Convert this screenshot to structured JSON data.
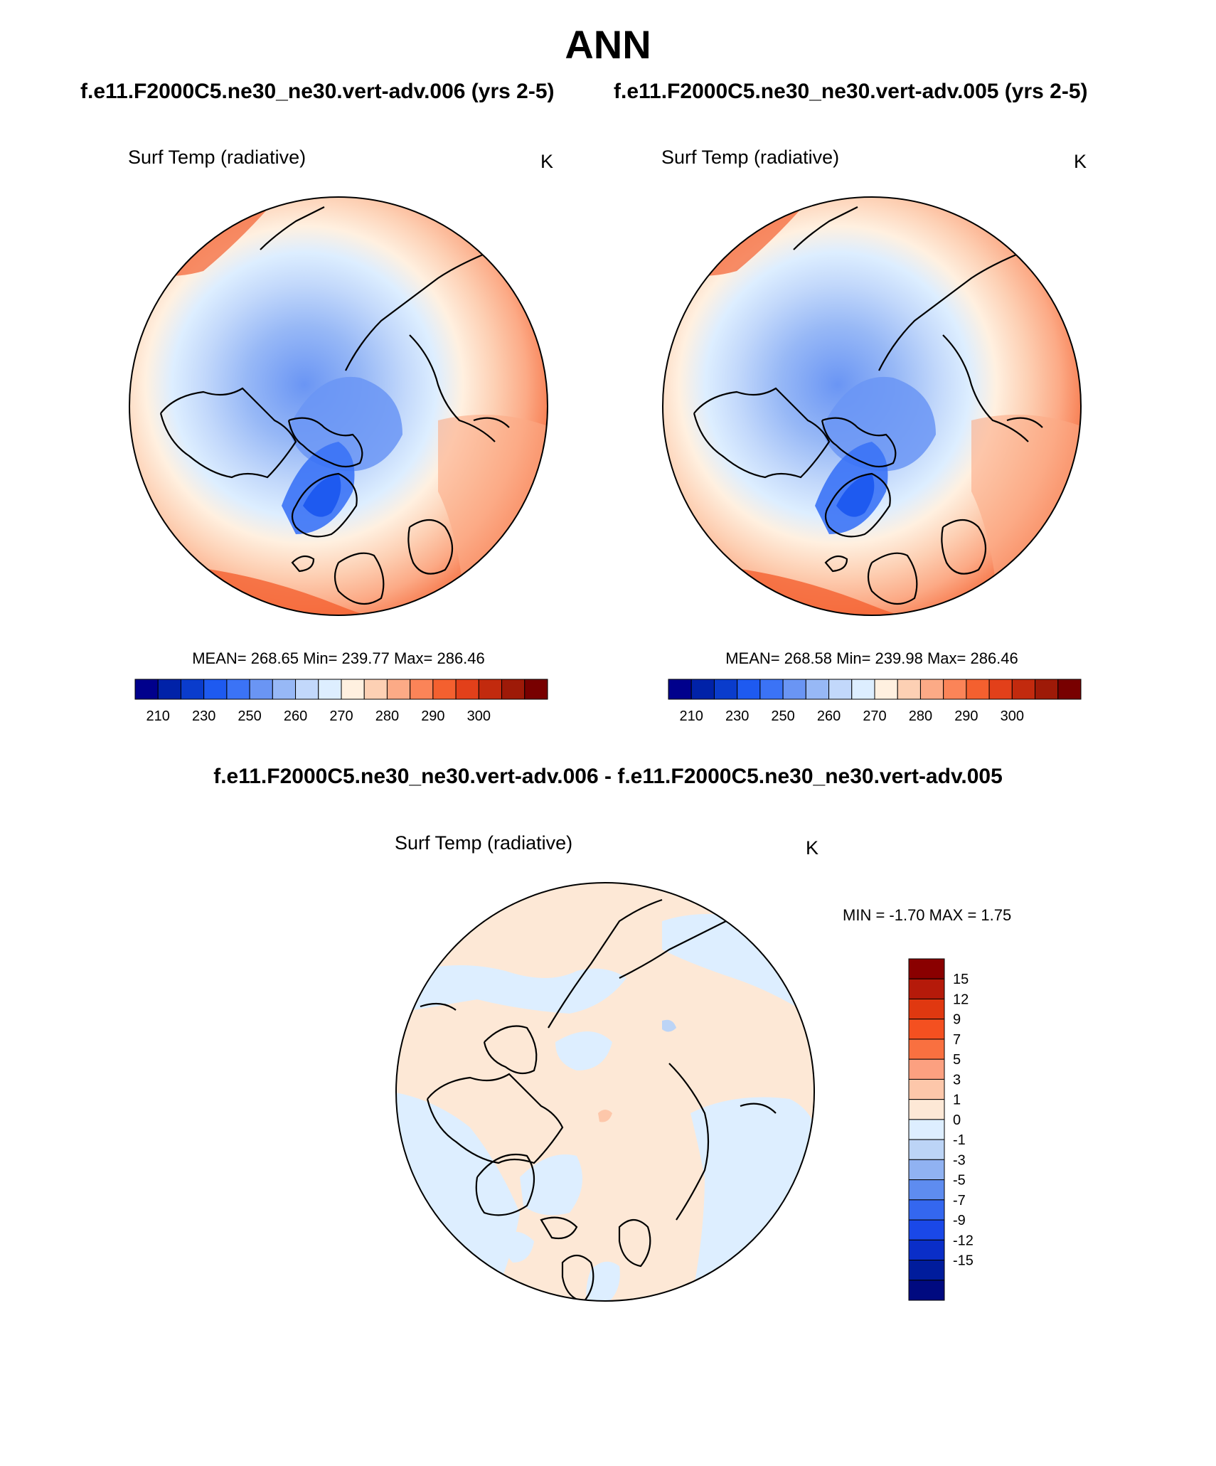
{
  "title": "ANN",
  "top_left_subtitle": "f.e11.F2000C5.ne30_ne30.vert-adv.006 (yrs 2-5)",
  "top_right_subtitle": "f.e11.F2000C5.ne30_ne30.vert-adv.005 (yrs 2-5)",
  "diff_title": "f.e11.F2000C5.ne30_ne30.vert-adv.006 - f.e11.F2000C5.ne30_ne30.vert-adv.005",
  "panels": [
    {
      "variable": "Surf Temp (radiative)",
      "units": "K",
      "stats": "MEAN= 268.65  Min= 239.77  Max= 286.46",
      "mean": 268.65,
      "min": 239.77,
      "max": 286.46
    },
    {
      "variable": "Surf Temp (radiative)",
      "units": "K",
      "stats": "MEAN= 268.58  Min= 239.98  Max= 286.46",
      "mean": 268.58,
      "min": 239.98,
      "max": 286.46
    }
  ],
  "diff_panel": {
    "variable": "Surf Temp (radiative)",
    "units": "K",
    "stats": "MIN =  -1.70 MAX =   1.75",
    "min": -1.7,
    "max": 1.75
  },
  "abs_colorbar": {
    "colors": [
      "#00008c",
      "#0022a8",
      "#0a3ccc",
      "#1e5af0",
      "#3b73f6",
      "#6a95f4",
      "#97b8f6",
      "#c2d8fb",
      "#ddeeff",
      "#fff0e0",
      "#fdd0b4",
      "#fcaa86",
      "#fb8458",
      "#f4602f",
      "#e2401a",
      "#c22a0e",
      "#9e1a08",
      "#780000"
    ],
    "tick_labels": [
      "210",
      "230",
      "250",
      "260",
      "270",
      "280",
      "290",
      "300"
    ]
  },
  "diff_colorbar": {
    "colors": [
      "#8a0000",
      "#b51a0a",
      "#e03810",
      "#f45020",
      "#f97040",
      "#fca080",
      "#fdc7aa",
      "#fde8d6",
      "#ddeeff",
      "#bcd4f6",
      "#90b2f2",
      "#5e8cf0",
      "#3467ef",
      "#1a48e8",
      "#0a2ec8",
      "#001c9c",
      "#000a80"
    ],
    "tick_labels": [
      "15",
      "12",
      "9",
      "7",
      "5",
      "3",
      "1",
      "0",
      "-1",
      "-3",
      "-5",
      "-7",
      "-9",
      "-12",
      "-15"
    ]
  }
}
